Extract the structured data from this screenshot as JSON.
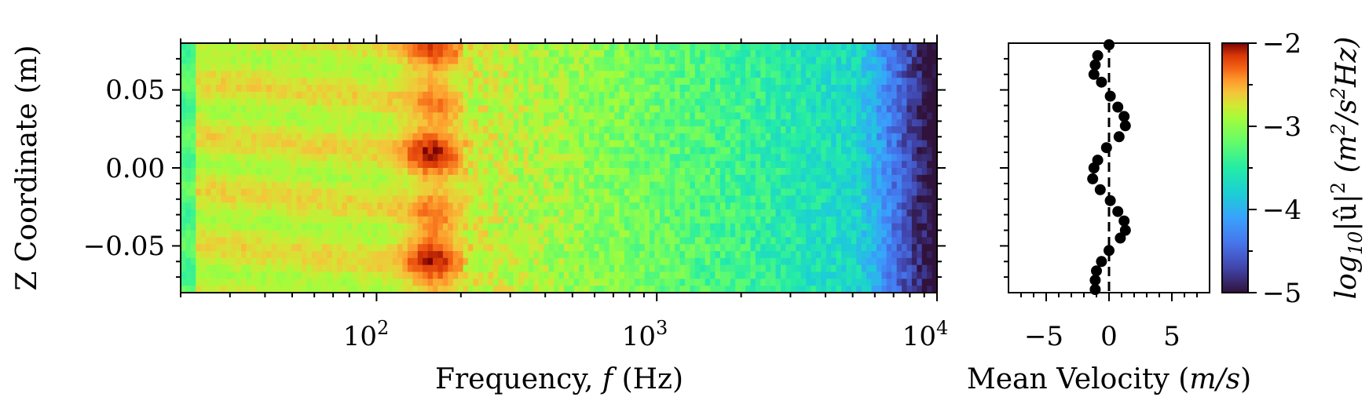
{
  "chart_data": [
    {
      "type": "heatmap",
      "xlabel_parts": [
        "Frequency, ",
        "f",
        " (Hz)"
      ],
      "ylabel": "Z Coordinate (m)",
      "xscale": "log",
      "xlim": [
        20,
        10000
      ],
      "ylim": [
        -0.08,
        0.08
      ],
      "xticks": [
        {
          "value": 100,
          "base": "10",
          "exp": "2"
        },
        {
          "value": 1000,
          "base": "10",
          "exp": "3"
        },
        {
          "value": 10000,
          "base": "10",
          "exp": "4"
        }
      ],
      "yticks": [
        {
          "value": 0.05,
          "label": "0.05"
        },
        {
          "value": 0.0,
          "label": "0.00"
        },
        {
          "value": -0.05,
          "label": "−0.05"
        }
      ],
      "colormap": "turbo",
      "clim": [
        -5,
        -2
      ],
      "colorbar": {
        "label_parts": [
          "log",
          "10",
          "|û|",
          "2",
          " (m",
          "2",
          "/s",
          "2",
          "Hz)"
        ],
        "ticks": [
          {
            "value": -2,
            "label": "−2"
          },
          {
            "value": -3,
            "label": "−3"
          },
          {
            "value": -4,
            "label": "−4"
          },
          {
            "value": -5,
            "label": "−5"
          }
        ]
      }
    },
    {
      "type": "scatter",
      "xlabel_parts": [
        "Mean Velocity (",
        "m/s",
        ")"
      ],
      "xlim": [
        -8,
        8
      ],
      "ylim": [
        -0.08,
        0.08
      ],
      "xticks": [
        {
          "value": -5,
          "label": "−5"
        },
        {
          "value": 0,
          "label": "0"
        },
        {
          "value": 5,
          "label": "5"
        }
      ],
      "reference_line": {
        "x": 0,
        "style": "dashed"
      },
      "points": [
        {
          "x": 0.0,
          "y": 0.079
        },
        {
          "x": -0.9,
          "y": 0.072
        },
        {
          "x": -1.1,
          "y": 0.066
        },
        {
          "x": -1.2,
          "y": 0.06
        },
        {
          "x": -0.6,
          "y": 0.055
        },
        {
          "x": 0.1,
          "y": 0.046
        },
        {
          "x": 0.7,
          "y": 0.039
        },
        {
          "x": 1.2,
          "y": 0.033
        },
        {
          "x": 1.3,
          "y": 0.027
        },
        {
          "x": 0.8,
          "y": 0.02
        },
        {
          "x": -0.2,
          "y": 0.013
        },
        {
          "x": -0.9,
          "y": 0.005
        },
        {
          "x": -1.2,
          "y": 0.0
        },
        {
          "x": -1.3,
          "y": -0.007
        },
        {
          "x": -0.7,
          "y": -0.014
        },
        {
          "x": 0.1,
          "y": -0.021
        },
        {
          "x": 0.7,
          "y": -0.028
        },
        {
          "x": 1.2,
          "y": -0.034
        },
        {
          "x": 1.3,
          "y": -0.04
        },
        {
          "x": 0.9,
          "y": -0.045
        },
        {
          "x": 0.0,
          "y": -0.053
        },
        {
          "x": -0.6,
          "y": -0.06
        },
        {
          "x": -1.0,
          "y": -0.066
        },
        {
          "x": -1.1,
          "y": -0.072
        },
        {
          "x": -1.1,
          "y": -0.078
        }
      ]
    }
  ]
}
